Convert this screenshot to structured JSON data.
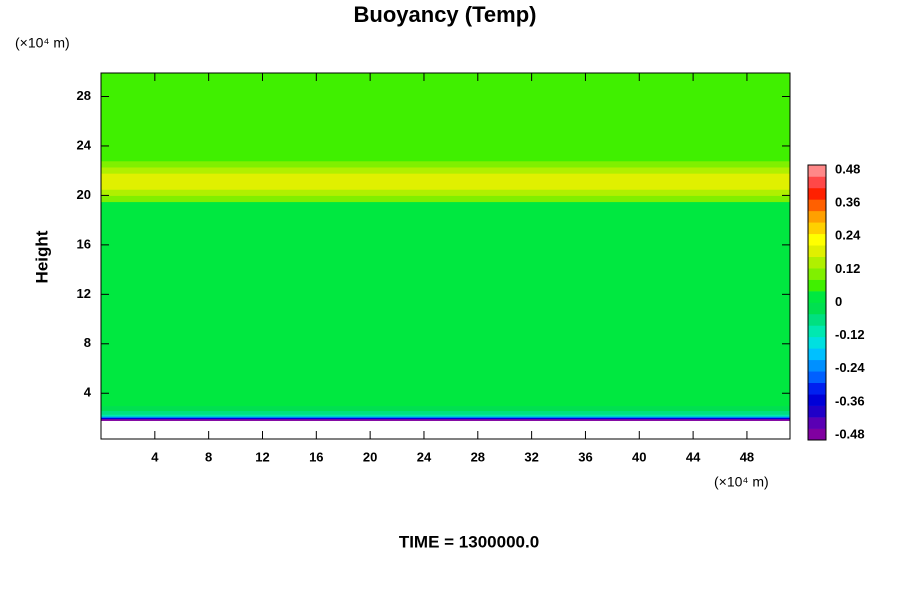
{
  "chart_data": {
    "type": "heatmap",
    "title": "Buoyancy (Temp)",
    "y_label": "Height",
    "x_unit_label": "(×10⁴ m)",
    "y_unit_label": "(×10⁴ m)",
    "footer": "TIME = 1300000.0",
    "xlim": [
      0,
      51.2
    ],
    "xticks": [
      4,
      8,
      12,
      16,
      20,
      24,
      28,
      32,
      36,
      40,
      44,
      48
    ],
    "ylim": [
      0.3,
      29.9
    ],
    "yticks": [
      4,
      8,
      12,
      16,
      20,
      24,
      28
    ],
    "y_edges": [
      1.8,
      1.95,
      2.05,
      2.15,
      2.3,
      2.6,
      3.0,
      10.5,
      11.8,
      19.5,
      20.0,
      20.5,
      21.8,
      22.3,
      22.8,
      23.3,
      28.6,
      29.9
    ],
    "values": [
      -0.48,
      -0.36,
      -0.24,
      -0.12,
      -0.06,
      -0.02,
      0.01,
      0.03,
      0.01,
      0.1,
      0.14,
      0.18,
      0.14,
      0.1,
      0.07,
      0.05,
      0.05
    ],
    "colorbar": {
      "lim": [
        -0.48,
        0.48
      ],
      "step": 0.04,
      "ticks": [
        0.48,
        0.36,
        0.24,
        0.12,
        0,
        -0.12,
        -0.24,
        -0.36,
        -0.48
      ],
      "colors": [
        "#8000a0",
        "#5a00b4",
        "#2000c8",
        "#0000d8",
        "#0020f0",
        "#0060ff",
        "#0090ff",
        "#00c0ff",
        "#00e0e0",
        "#00e8b0",
        "#00e080",
        "#00e050",
        "#00e840",
        "#40f000",
        "#80f000",
        "#b0f000",
        "#e0f000",
        "#ffff00",
        "#ffd000",
        "#ffa000",
        "#ff6000",
        "#ff2000",
        "#ff4848",
        "#ff8888"
      ]
    }
  }
}
